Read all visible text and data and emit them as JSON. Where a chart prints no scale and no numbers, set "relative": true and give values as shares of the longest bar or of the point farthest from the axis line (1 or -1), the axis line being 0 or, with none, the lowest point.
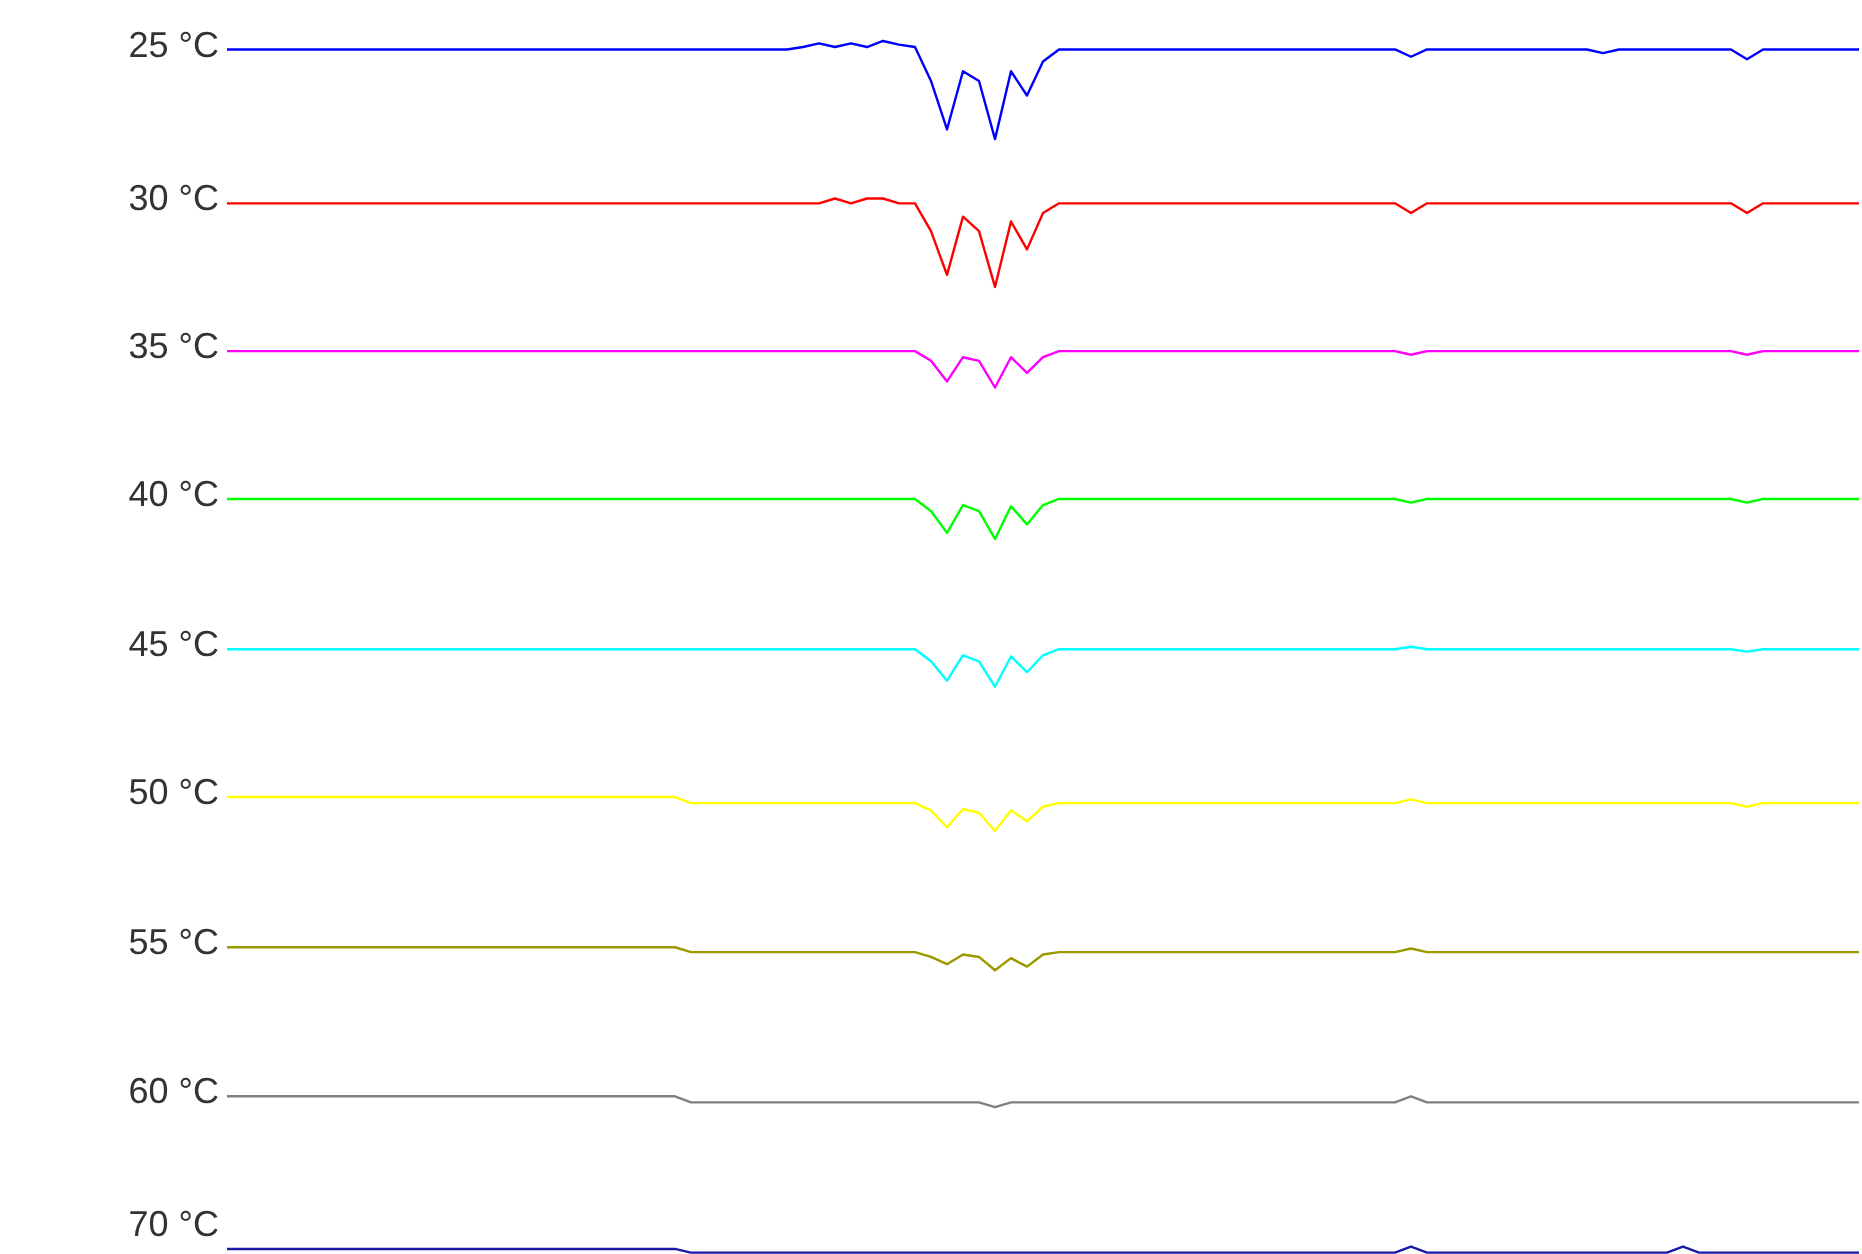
{
  "chart_data": {
    "type": "line",
    "relative": true,
    "line_style": "solid",
    "categories": [
      null,
      null,
      null,
      null,
      null,
      null,
      null,
      null,
      null,
      null,
      null,
      null,
      null,
      null,
      null,
      null,
      null,
      null,
      null,
      null,
      null,
      null,
      null,
      null,
      null,
      null,
      null,
      null,
      null,
      null,
      null,
      null,
      null,
      null,
      null,
      null,
      null,
      null,
      null,
      null,
      null,
      null,
      null,
      null,
      null,
      null,
      null,
      null,
      null,
      null,
      null,
      null,
      null,
      null,
      null,
      null,
      null,
      null,
      null,
      null,
      null,
      null,
      null,
      null,
      null,
      null,
      null,
      null,
      null,
      null,
      null,
      null,
      null,
      null,
      null,
      null,
      null,
      null,
      null,
      null,
      null,
      null,
      null,
      null,
      null,
      null,
      null,
      null,
      null,
      null,
      null,
      null,
      null,
      null,
      null,
      null,
      null,
      null,
      null,
      null,
      null,
      null,
      null
    ],
    "series": [
      {
        "name": "25 °C",
        "color": "#0000ff",
        "values": [
          0.993,
          0.993,
          0.993,
          0.993,
          0.993,
          0.993,
          0.993,
          0.993,
          0.993,
          0.993,
          0.993,
          0.993,
          0.993,
          0.993,
          0.993,
          0.993,
          0.993,
          0.993,
          0.993,
          0.993,
          0.993,
          0.993,
          0.993,
          0.993,
          0.993,
          0.993,
          0.993,
          0.993,
          0.993,
          0.993,
          0.993,
          0.993,
          0.993,
          0.993,
          0.993,
          0.993,
          0.995,
          0.998,
          0.995,
          0.998,
          0.995,
          1.0,
          0.997,
          0.995,
          0.967,
          0.927,
          0.975,
          0.967,
          0.919,
          0.975,
          0.955,
          0.983,
          0.993,
          0.993,
          0.993,
          0.993,
          0.993,
          0.993,
          0.993,
          0.993,
          0.993,
          0.993,
          0.993,
          0.993,
          0.993,
          0.993,
          0.993,
          0.993,
          0.993,
          0.993,
          0.993,
          0.993,
          0.993,
          0.993,
          0.987,
          0.993,
          0.993,
          0.993,
          0.993,
          0.993,
          0.993,
          0.993,
          0.993,
          0.993,
          0.993,
          0.993,
          0.99,
          0.993,
          0.993,
          0.993,
          0.993,
          0.993,
          0.993,
          0.993,
          0.993,
          0.985,
          0.993,
          0.993,
          0.993,
          0.993,
          0.993,
          0.993,
          0.993
        ]
      },
      {
        "name": "30 °C",
        "color": "#ff0000",
        "values": [
          0.866,
          0.866,
          0.866,
          0.866,
          0.866,
          0.866,
          0.866,
          0.866,
          0.866,
          0.866,
          0.866,
          0.866,
          0.866,
          0.866,
          0.866,
          0.866,
          0.866,
          0.866,
          0.866,
          0.866,
          0.866,
          0.866,
          0.866,
          0.866,
          0.866,
          0.866,
          0.866,
          0.866,
          0.866,
          0.866,
          0.866,
          0.866,
          0.866,
          0.866,
          0.866,
          0.866,
          0.866,
          0.866,
          0.87,
          0.866,
          0.87,
          0.87,
          0.866,
          0.866,
          0.843,
          0.807,
          0.855,
          0.843,
          0.797,
          0.851,
          0.828,
          0.858,
          0.866,
          0.866,
          0.866,
          0.866,
          0.866,
          0.866,
          0.866,
          0.866,
          0.866,
          0.866,
          0.866,
          0.866,
          0.866,
          0.866,
          0.866,
          0.866,
          0.866,
          0.866,
          0.866,
          0.866,
          0.866,
          0.866,
          0.858,
          0.866,
          0.866,
          0.866,
          0.866,
          0.866,
          0.866,
          0.866,
          0.866,
          0.866,
          0.866,
          0.866,
          0.866,
          0.866,
          0.866,
          0.866,
          0.866,
          0.866,
          0.866,
          0.866,
          0.866,
          0.858,
          0.866,
          0.866,
          0.866,
          0.866,
          0.866,
          0.866,
          0.866
        ]
      },
      {
        "name": "35 °C",
        "color": "#ff00ff",
        "values": [
          0.744,
          0.744,
          0.744,
          0.744,
          0.744,
          0.744,
          0.744,
          0.744,
          0.744,
          0.744,
          0.744,
          0.744,
          0.744,
          0.744,
          0.744,
          0.744,
          0.744,
          0.744,
          0.744,
          0.744,
          0.744,
          0.744,
          0.744,
          0.744,
          0.744,
          0.744,
          0.744,
          0.744,
          0.744,
          0.744,
          0.744,
          0.744,
          0.744,
          0.744,
          0.744,
          0.744,
          0.744,
          0.744,
          0.744,
          0.744,
          0.744,
          0.744,
          0.744,
          0.744,
          0.736,
          0.719,
          0.739,
          0.736,
          0.714,
          0.739,
          0.726,
          0.739,
          0.744,
          0.744,
          0.744,
          0.744,
          0.744,
          0.744,
          0.744,
          0.744,
          0.744,
          0.744,
          0.744,
          0.744,
          0.744,
          0.744,
          0.744,
          0.744,
          0.744,
          0.744,
          0.744,
          0.744,
          0.744,
          0.744,
          0.741,
          0.744,
          0.744,
          0.744,
          0.744,
          0.744,
          0.744,
          0.744,
          0.744,
          0.744,
          0.744,
          0.744,
          0.744,
          0.744,
          0.744,
          0.744,
          0.744,
          0.744,
          0.744,
          0.744,
          0.744,
          0.741,
          0.744,
          0.744,
          0.744,
          0.744,
          0.744,
          0.744,
          0.744
        ]
      },
      {
        "name": "40 °C",
        "color": "#00ff00",
        "values": [
          0.622,
          0.622,
          0.622,
          0.622,
          0.622,
          0.622,
          0.622,
          0.622,
          0.622,
          0.622,
          0.622,
          0.622,
          0.622,
          0.622,
          0.622,
          0.622,
          0.622,
          0.622,
          0.622,
          0.622,
          0.622,
          0.622,
          0.622,
          0.622,
          0.622,
          0.622,
          0.622,
          0.622,
          0.622,
          0.622,
          0.622,
          0.622,
          0.622,
          0.622,
          0.622,
          0.622,
          0.622,
          0.622,
          0.622,
          0.622,
          0.622,
          0.622,
          0.622,
          0.622,
          0.612,
          0.594,
          0.617,
          0.612,
          0.589,
          0.616,
          0.601,
          0.617,
          0.622,
          0.622,
          0.622,
          0.622,
          0.622,
          0.622,
          0.622,
          0.622,
          0.622,
          0.622,
          0.622,
          0.622,
          0.622,
          0.622,
          0.622,
          0.622,
          0.622,
          0.622,
          0.622,
          0.622,
          0.622,
          0.622,
          0.619,
          0.622,
          0.622,
          0.622,
          0.622,
          0.622,
          0.622,
          0.622,
          0.622,
          0.622,
          0.622,
          0.622,
          0.622,
          0.622,
          0.622,
          0.622,
          0.622,
          0.622,
          0.622,
          0.622,
          0.622,
          0.619,
          0.622,
          0.622,
          0.622,
          0.622,
          0.622,
          0.622,
          0.622
        ]
      },
      {
        "name": "45 °C",
        "color": "#00ffff",
        "values": [
          0.498,
          0.498,
          0.498,
          0.498,
          0.498,
          0.498,
          0.498,
          0.498,
          0.498,
          0.498,
          0.498,
          0.498,
          0.498,
          0.498,
          0.498,
          0.498,
          0.498,
          0.498,
          0.498,
          0.498,
          0.498,
          0.498,
          0.498,
          0.498,
          0.498,
          0.498,
          0.498,
          0.498,
          0.498,
          0.498,
          0.498,
          0.498,
          0.498,
          0.498,
          0.498,
          0.498,
          0.498,
          0.498,
          0.498,
          0.498,
          0.498,
          0.498,
          0.498,
          0.498,
          0.488,
          0.472,
          0.493,
          0.488,
          0.467,
          0.492,
          0.479,
          0.493,
          0.498,
          0.498,
          0.498,
          0.498,
          0.498,
          0.498,
          0.498,
          0.498,
          0.498,
          0.498,
          0.498,
          0.498,
          0.498,
          0.498,
          0.498,
          0.498,
          0.498,
          0.498,
          0.498,
          0.498,
          0.498,
          0.498,
          0.5,
          0.498,
          0.498,
          0.498,
          0.498,
          0.498,
          0.498,
          0.498,
          0.498,
          0.498,
          0.498,
          0.498,
          0.498,
          0.498,
          0.498,
          0.498,
          0.498,
          0.498,
          0.498,
          0.498,
          0.498,
          0.496,
          0.498,
          0.498,
          0.498,
          0.498,
          0.498,
          0.498,
          0.498
        ]
      },
      {
        "name": "50 °C",
        "color": "#ffff00",
        "values": [
          0.376,
          0.376,
          0.376,
          0.376,
          0.376,
          0.376,
          0.376,
          0.376,
          0.376,
          0.376,
          0.376,
          0.376,
          0.376,
          0.376,
          0.376,
          0.376,
          0.376,
          0.376,
          0.376,
          0.376,
          0.376,
          0.376,
          0.376,
          0.376,
          0.376,
          0.376,
          0.376,
          0.376,
          0.376,
          0.371,
          0.371,
          0.371,
          0.371,
          0.371,
          0.371,
          0.371,
          0.371,
          0.371,
          0.371,
          0.371,
          0.371,
          0.371,
          0.371,
          0.371,
          0.365,
          0.351,
          0.366,
          0.363,
          0.348,
          0.365,
          0.356,
          0.368,
          0.371,
          0.371,
          0.371,
          0.371,
          0.371,
          0.371,
          0.371,
          0.371,
          0.371,
          0.371,
          0.371,
          0.371,
          0.371,
          0.371,
          0.371,
          0.371,
          0.371,
          0.371,
          0.371,
          0.371,
          0.371,
          0.371,
          0.374,
          0.371,
          0.371,
          0.371,
          0.371,
          0.371,
          0.371,
          0.371,
          0.371,
          0.371,
          0.371,
          0.371,
          0.371,
          0.371,
          0.371,
          0.371,
          0.371,
          0.371,
          0.371,
          0.371,
          0.371,
          0.368,
          0.371,
          0.371,
          0.371,
          0.371,
          0.371,
          0.371,
          0.371
        ]
      },
      {
        "name": "55 °C",
        "color": "#999900",
        "values": [
          0.252,
          0.252,
          0.252,
          0.252,
          0.252,
          0.252,
          0.252,
          0.252,
          0.252,
          0.252,
          0.252,
          0.252,
          0.252,
          0.252,
          0.252,
          0.252,
          0.252,
          0.252,
          0.252,
          0.252,
          0.252,
          0.252,
          0.252,
          0.252,
          0.252,
          0.252,
          0.252,
          0.252,
          0.252,
          0.248,
          0.248,
          0.248,
          0.248,
          0.248,
          0.248,
          0.248,
          0.248,
          0.248,
          0.248,
          0.248,
          0.248,
          0.248,
          0.248,
          0.248,
          0.244,
          0.238,
          0.246,
          0.244,
          0.233,
          0.243,
          0.236,
          0.246,
          0.248,
          0.248,
          0.248,
          0.248,
          0.248,
          0.248,
          0.248,
          0.248,
          0.248,
          0.248,
          0.248,
          0.248,
          0.248,
          0.248,
          0.248,
          0.248,
          0.248,
          0.248,
          0.248,
          0.248,
          0.248,
          0.248,
          0.251,
          0.248,
          0.248,
          0.248,
          0.248,
          0.248,
          0.248,
          0.248,
          0.248,
          0.248,
          0.248,
          0.248,
          0.248,
          0.248,
          0.248,
          0.248,
          0.248,
          0.248,
          0.248,
          0.248,
          0.248,
          0.248,
          0.248,
          0.248,
          0.248,
          0.248,
          0.248,
          0.248,
          0.248
        ]
      },
      {
        "name": "60 °C",
        "color": "#808080",
        "values": [
          0.129,
          0.129,
          0.129,
          0.129,
          0.129,
          0.129,
          0.129,
          0.129,
          0.129,
          0.129,
          0.129,
          0.129,
          0.129,
          0.129,
          0.129,
          0.129,
          0.129,
          0.129,
          0.129,
          0.129,
          0.129,
          0.129,
          0.129,
          0.129,
          0.129,
          0.129,
          0.129,
          0.129,
          0.129,
          0.124,
          0.124,
          0.124,
          0.124,
          0.124,
          0.124,
          0.124,
          0.124,
          0.124,
          0.124,
          0.124,
          0.124,
          0.124,
          0.124,
          0.124,
          0.124,
          0.124,
          0.124,
          0.124,
          0.12,
          0.124,
          0.124,
          0.124,
          0.124,
          0.124,
          0.124,
          0.124,
          0.124,
          0.124,
          0.124,
          0.124,
          0.124,
          0.124,
          0.124,
          0.124,
          0.124,
          0.124,
          0.124,
          0.124,
          0.124,
          0.124,
          0.124,
          0.124,
          0.124,
          0.124,
          0.129,
          0.124,
          0.124,
          0.124,
          0.124,
          0.124,
          0.124,
          0.124,
          0.124,
          0.124,
          0.124,
          0.124,
          0.124,
          0.124,
          0.124,
          0.124,
          0.124,
          0.124,
          0.124,
          0.124,
          0.124,
          0.124,
          0.124,
          0.124,
          0.124,
          0.124,
          0.124,
          0.124,
          0.124
        ]
      },
      {
        "name": "70 °C",
        "color": "#1a1aa6",
        "values": [
          0.003,
          0.003,
          0.003,
          0.003,
          0.003,
          0.003,
          0.003,
          0.003,
          0.003,
          0.003,
          0.003,
          0.003,
          0.003,
          0.003,
          0.003,
          0.003,
          0.003,
          0.003,
          0.003,
          0.003,
          0.003,
          0.003,
          0.003,
          0.003,
          0.003,
          0.003,
          0.003,
          0.003,
          0.003,
          0.0,
          0.0,
          0.0,
          0.0,
          0.0,
          0.0,
          0.0,
          0.0,
          0.0,
          0.0,
          0.0,
          0.0,
          0.0,
          0.0,
          0.0,
          0.0,
          0.0,
          0.0,
          0.0,
          0.0,
          0.0,
          0.0,
          0.0,
          0.0,
          0.0,
          0.0,
          0.0,
          0.0,
          0.0,
          0.0,
          0.0,
          0.0,
          0.0,
          0.0,
          0.0,
          0.0,
          0.0,
          0.0,
          0.0,
          0.0,
          0.0,
          0.0,
          0.0,
          0.0,
          0.0,
          0.005,
          0.0,
          0.0,
          0.0,
          0.0,
          0.0,
          0.0,
          0.0,
          0.0,
          0.0,
          0.0,
          0.0,
          0.0,
          0.0,
          0.0,
          0.0,
          0.0,
          0.005,
          0.0,
          0.0,
          0.0,
          0.0,
          0.0,
          0.0,
          0.0,
          0.0,
          0.0,
          0.0,
          0.0
        ]
      }
    ]
  }
}
